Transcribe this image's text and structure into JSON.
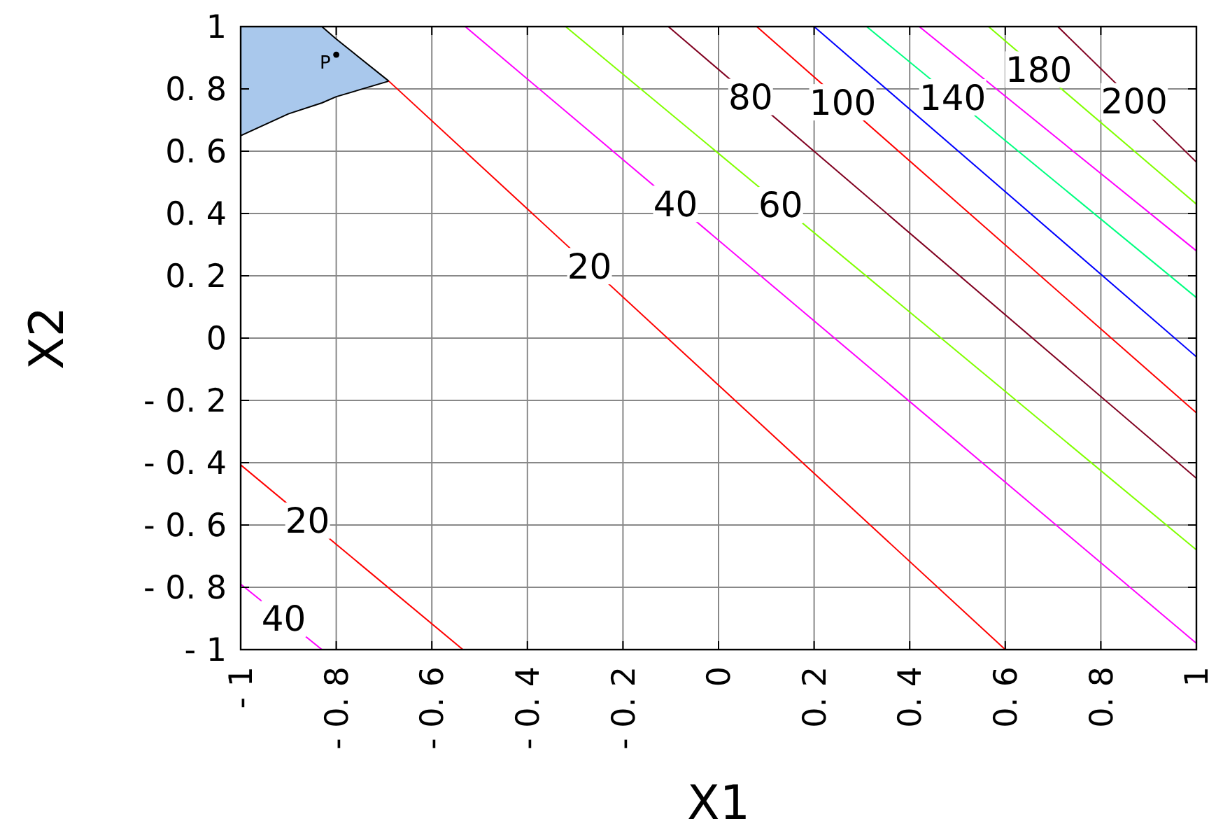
{
  "chart_data": {
    "type": "line",
    "xlabel": "X1",
    "ylabel": "X2",
    "xlim": [
      -1,
      1
    ],
    "ylim": [
      -1,
      1
    ],
    "xticks": [
      {
        "value": -1,
        "label": "- 1"
      },
      {
        "value": -0.8,
        "label": "- 0. 8"
      },
      {
        "value": -0.6,
        "label": "- 0. 6"
      },
      {
        "value": -0.4,
        "label": "- 0. 4"
      },
      {
        "value": -0.2,
        "label": "- 0. 2"
      },
      0,
      {
        "value": 0.2,
        "label": "0. 2"
      },
      {
        "value": 0.4,
        "label": "0. 4"
      },
      {
        "value": 0.6,
        "label": "0. 6"
      },
      {
        "value": 0.8,
        "label": "0. 8"
      },
      1
    ],
    "yticks": [
      {
        "value": -1,
        "label": "- 1"
      },
      {
        "value": -0.8,
        "label": "- 0. 8"
      },
      {
        "value": -0.6,
        "label": "- 0. 6"
      },
      {
        "value": -0.4,
        "label": "- 0. 4"
      },
      {
        "value": -0.2,
        "label": "- 0. 2"
      },
      0,
      {
        "value": 0.2,
        "label": "0. 2"
      },
      {
        "value": 0.4,
        "label": "0. 4"
      },
      {
        "value": 0.6,
        "label": "0. 6"
      },
      {
        "value": 0.8,
        "label": "0. 8"
      },
      1
    ],
    "grid": true,
    "series": [
      {
        "color": "#000000",
        "x": [
          -1,
          -0.9,
          -0.83,
          -0.8,
          -0.69
        ],
        "values": [
          0.65,
          0.72,
          0.755,
          0.775,
          0.825
        ],
        "lower": [
          0.65,
          0.72,
          0.755,
          0.775,
          0.825
        ],
        "upper": [
          1,
          1,
          1,
          0.96,
          0.825
        ]
      },
      {
        "color": "#000000",
        "x": [
          -1,
          -0.9,
          -0.83,
          -0.8,
          -0.69
        ],
        "values": [
          1,
          1,
          1,
          0.96,
          0.825
        ]
      },
      {
        "color": "#ff0000",
        "x": [
          -0.69,
          0.6
        ],
        "values": [
          0.825,
          -1
        ]
      },
      {
        "color": "#ff00ff",
        "x": [
          -0.53,
          1
        ],
        "values": [
          1,
          -0.98
        ]
      },
      {
        "color": "#80ff00",
        "x": [
          -0.32,
          1
        ],
        "values": [
          1,
          -0.68
        ]
      },
      {
        "color": "#800020",
        "x": [
          -0.105,
          1
        ],
        "values": [
          1,
          -0.45
        ]
      },
      {
        "color": "#ff0000",
        "x": [
          0.08,
          1
        ],
        "values": [
          1,
          -0.24
        ]
      },
      {
        "color": "#0000ff",
        "x": [
          0.2,
          1
        ],
        "values": [
          1,
          -0.06
        ]
      },
      {
        "color": "#00ff80",
        "x": [
          0.31,
          1
        ],
        "values": [
          1,
          0.13
        ]
      },
      {
        "color": "#ff00ff",
        "x": [
          0.42,
          1
        ],
        "values": [
          1,
          0.28
        ]
      },
      {
        "color": "#80ff00",
        "x": [
          0.565,
          1
        ],
        "values": [
          1,
          0.43
        ]
      },
      {
        "color": "#800020",
        "x": [
          0.71,
          1
        ],
        "values": [
          1,
          0.565
        ]
      },
      {
        "color": "#ff0000",
        "x": [
          -1,
          -0.535
        ],
        "values": [
          -0.407,
          -1
        ]
      },
      {
        "color": "#ff00ff",
        "x": [
          -1,
          -0.83
        ],
        "values": [
          -0.79,
          -1
        ]
      },
      {
        "type": "scatter",
        "color": "#000000",
        "x": [
          -0.8
        ],
        "values": [
          0.91
        ]
      }
    ],
    "annotations": [
      {
        "text": "20",
        "x": -0.27,
        "y": 0.231
      },
      {
        "text": "40",
        "x": -0.09,
        "y": 0.431
      },
      {
        "text": "60",
        "x": 0.13,
        "y": 0.427
      },
      {
        "text": "80",
        "x": 0.067,
        "y": 0.774
      },
      {
        "text": "100",
        "x": 0.26,
        "y": 0.757
      },
      {
        "text": "140",
        "x": 0.49,
        "y": 0.773
      },
      {
        "text": "180",
        "x": 0.67,
        "y": 0.862
      },
      {
        "text": "200",
        "x": 0.87,
        "y": 0.76
      },
      {
        "text": "20",
        "x": -0.86,
        "y": -0.586
      },
      {
        "text": "40",
        "x": -0.91,
        "y": -0.901
      },
      {
        "text": "P",
        "x": -0.8,
        "y": 0.91
      }
    ]
  }
}
